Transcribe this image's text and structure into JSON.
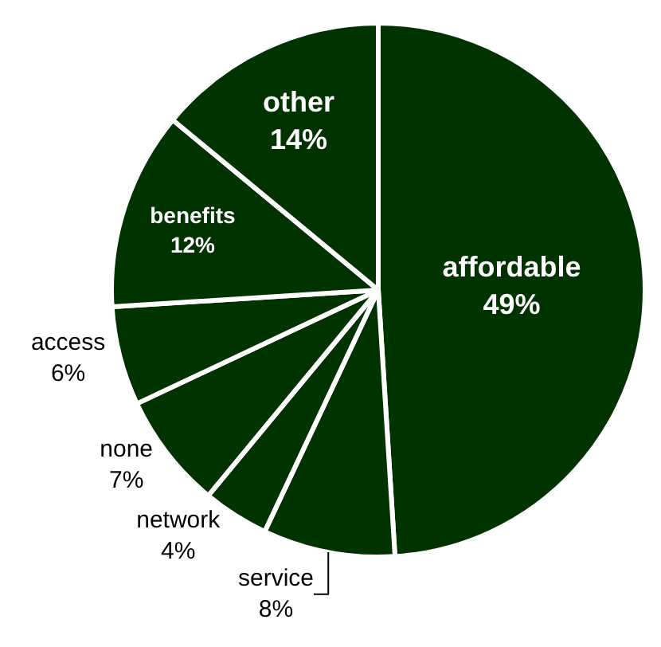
{
  "chart_data": {
    "type": "pie",
    "categories": [
      "affordable",
      "service",
      "network",
      "none",
      "access",
      "benefits",
      "other"
    ],
    "values": [
      49,
      8,
      4,
      7,
      6,
      12,
      14
    ],
    "value_labels": [
      "49%",
      "8%",
      "4%",
      "7%",
      "6%",
      "12%",
      "14%"
    ],
    "colors": [
      "#003300",
      "#003300",
      "#003300",
      "#003300",
      "#003300",
      "#003300",
      "#003300"
    ],
    "legend": false
  }
}
